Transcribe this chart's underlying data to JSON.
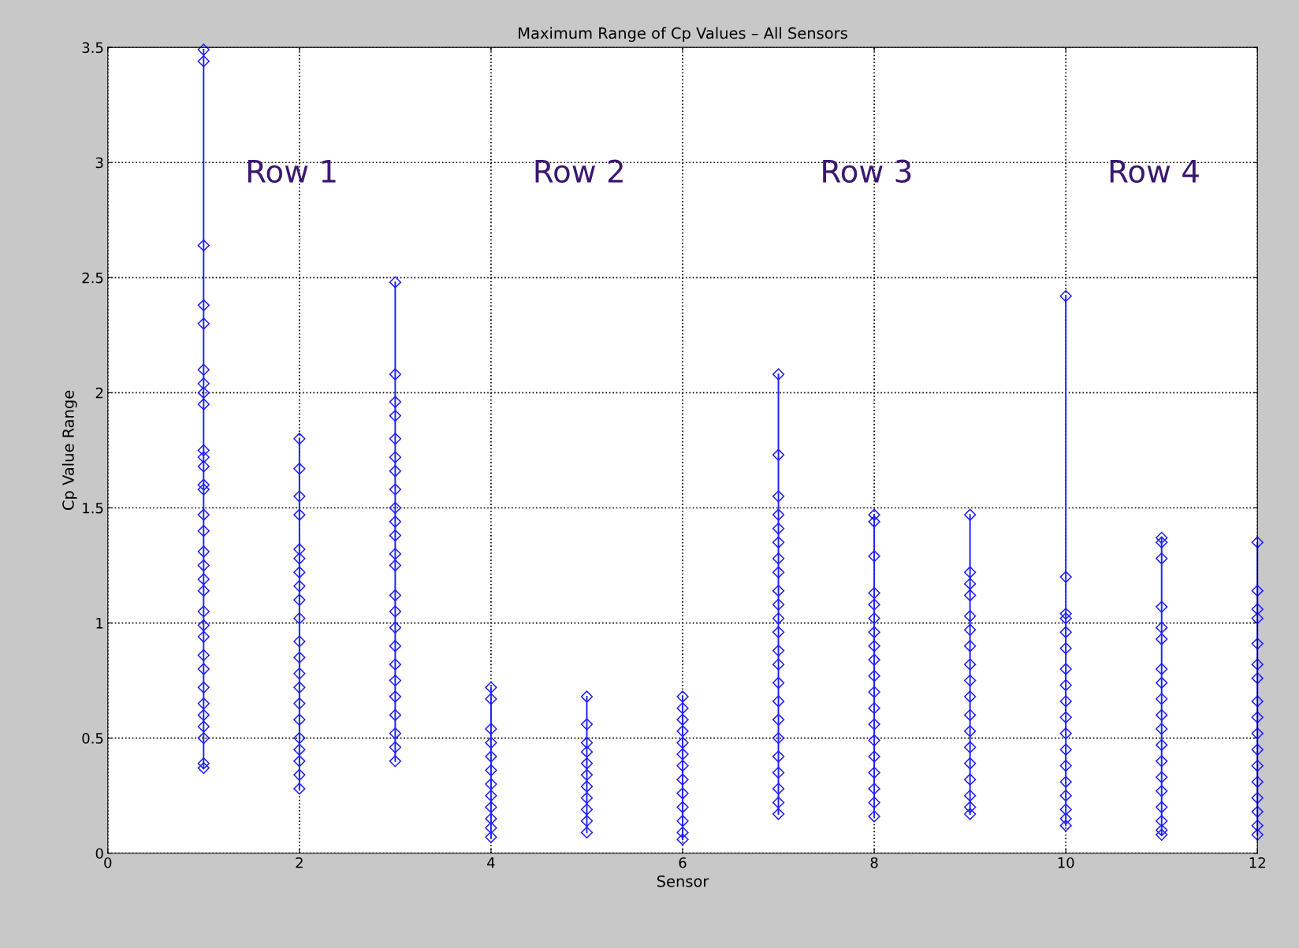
{
  "chart_data": {
    "type": "line",
    "title": "Maximum Range of Cp Values – All Sensors",
    "xlabel": "Sensor",
    "ylabel": "Cp Value Range",
    "xlim": [
      0,
      12
    ],
    "xticks": [
      0,
      2,
      4,
      6,
      8,
      10,
      12
    ],
    "ylim": [
      0,
      3.5
    ],
    "yticks": [
      0,
      0.5,
      1,
      1.5,
      2,
      2.5,
      3,
      3.5
    ],
    "grid": true,
    "marker": "diamond",
    "line_style": "solid",
    "legend": false,
    "annotations": [
      "Row 1",
      "Row 2",
      "Row 3",
      "Row 4"
    ],
    "series": [
      {
        "color": "#1f1fff",
        "x": [
          1,
          1,
          1,
          1,
          1,
          1,
          1,
          1,
          1,
          1,
          1,
          1,
          1,
          1,
          1,
          1,
          1,
          1,
          1,
          1,
          1,
          1,
          1,
          1,
          1,
          1,
          1,
          1,
          1,
          1,
          1,
          1
        ],
        "values": [
          3.49,
          3.44,
          2.64,
          2.38,
          2.3,
          2.1,
          2.04,
          2.0,
          1.95,
          1.75,
          1.72,
          1.68,
          1.6,
          1.58,
          1.47,
          1.4,
          1.31,
          1.25,
          1.19,
          1.14,
          1.05,
          0.99,
          0.94,
          0.86,
          0.8,
          0.72,
          0.65,
          0.6,
          0.55,
          0.5,
          0.39,
          0.37
        ]
      },
      {
        "color": "#1f1fff",
        "x": [
          2,
          2,
          2,
          2,
          2,
          2,
          2,
          2,
          2,
          2,
          2,
          2,
          2,
          2,
          2,
          2,
          2,
          2,
          2,
          2,
          2
        ],
        "values": [
          1.8,
          1.67,
          1.55,
          1.47,
          1.32,
          1.28,
          1.22,
          1.16,
          1.1,
          1.02,
          0.92,
          0.85,
          0.78,
          0.72,
          0.65,
          0.58,
          0.5,
          0.45,
          0.4,
          0.34,
          0.28
        ]
      },
      {
        "color": "#1f1fff",
        "x": [
          3,
          3,
          3,
          3,
          3,
          3,
          3,
          3,
          3,
          3,
          3,
          3,
          3,
          3,
          3,
          3,
          3,
          3,
          3,
          3,
          3,
          3,
          3,
          3
        ],
        "values": [
          2.48,
          2.08,
          1.96,
          1.9,
          1.8,
          1.72,
          1.66,
          1.58,
          1.5,
          1.44,
          1.38,
          1.3,
          1.25,
          1.12,
          1.05,
          0.98,
          0.9,
          0.82,
          0.75,
          0.68,
          0.6,
          0.52,
          0.46,
          0.4
        ]
      },
      {
        "color": "#1f1fff",
        "x": [
          4,
          4,
          4,
          4,
          4,
          4,
          4,
          4,
          4,
          4,
          4,
          4
        ],
        "values": [
          0.72,
          0.67,
          0.54,
          0.48,
          0.42,
          0.36,
          0.3,
          0.25,
          0.2,
          0.15,
          0.11,
          0.07
        ]
      },
      {
        "color": "#1f1fff",
        "x": [
          5,
          5,
          5,
          5,
          5,
          5,
          5,
          5,
          5,
          5,
          5
        ],
        "values": [
          0.68,
          0.56,
          0.48,
          0.44,
          0.39,
          0.34,
          0.29,
          0.24,
          0.19,
          0.14,
          0.09
        ]
      },
      {
        "color": "#1f1fff",
        "x": [
          6,
          6,
          6,
          6,
          6,
          6,
          6,
          6,
          6,
          6,
          6,
          6,
          6
        ],
        "values": [
          0.68,
          0.63,
          0.58,
          0.53,
          0.48,
          0.43,
          0.38,
          0.32,
          0.26,
          0.2,
          0.14,
          0.09,
          0.06
        ]
      },
      {
        "color": "#1f1fff",
        "x": [
          7,
          7,
          7,
          7,
          7,
          7,
          7,
          7,
          7,
          7,
          7,
          7,
          7,
          7,
          7,
          7,
          7,
          7,
          7,
          7,
          7,
          7,
          7
        ],
        "values": [
          2.08,
          1.73,
          1.55,
          1.47,
          1.41,
          1.35,
          1.28,
          1.22,
          1.14,
          1.08,
          1.02,
          0.96,
          0.88,
          0.82,
          0.74,
          0.66,
          0.58,
          0.5,
          0.42,
          0.35,
          0.28,
          0.22,
          0.17
        ]
      },
      {
        "color": "#1f1fff",
        "x": [
          8,
          8,
          8,
          8,
          8,
          8,
          8,
          8,
          8,
          8,
          8,
          8,
          8,
          8,
          8,
          8,
          8,
          8,
          8
        ],
        "values": [
          1.47,
          1.44,
          1.29,
          1.13,
          1.08,
          1.02,
          0.96,
          0.9,
          0.84,
          0.77,
          0.7,
          0.63,
          0.56,
          0.49,
          0.42,
          0.35,
          0.28,
          0.22,
          0.16
        ]
      },
      {
        "color": "#1f1fff",
        "x": [
          9,
          9,
          9,
          9,
          9,
          9,
          9,
          9,
          9,
          9,
          9,
          9,
          9,
          9,
          9,
          9,
          9,
          9
        ],
        "values": [
          1.47,
          1.22,
          1.17,
          1.12,
          1.03,
          0.97,
          0.9,
          0.82,
          0.75,
          0.68,
          0.6,
          0.53,
          0.46,
          0.39,
          0.32,
          0.25,
          0.2,
          0.17
        ]
      },
      {
        "color": "#1f1fff",
        "x": [
          10,
          10,
          10,
          10,
          10,
          10,
          10,
          10,
          10,
          10,
          10,
          10,
          10,
          10,
          10,
          10,
          10,
          10
        ],
        "values": [
          2.42,
          1.2,
          1.04,
          1.02,
          0.96,
          0.89,
          0.8,
          0.73,
          0.66,
          0.59,
          0.52,
          0.45,
          0.38,
          0.31,
          0.25,
          0.19,
          0.15,
          0.12
        ]
      },
      {
        "color": "#1f1fff",
        "x": [
          11,
          11,
          11,
          11,
          11,
          11,
          11,
          11,
          11,
          11,
          11,
          11,
          11,
          11,
          11,
          11,
          11,
          11,
          11
        ],
        "values": [
          1.37,
          1.35,
          1.28,
          1.07,
          0.98,
          0.93,
          0.8,
          0.74,
          0.67,
          0.6,
          0.54,
          0.47,
          0.4,
          0.33,
          0.27,
          0.2,
          0.14,
          0.1,
          0.08
        ]
      },
      {
        "color": "#1f1fff",
        "x": [
          12,
          12,
          12,
          12,
          12,
          12,
          12,
          12,
          12,
          12,
          12,
          12,
          12,
          12,
          12,
          12,
          12
        ],
        "values": [
          1.35,
          1.14,
          1.06,
          1.02,
          0.91,
          0.82,
          0.76,
          0.66,
          0.59,
          0.52,
          0.45,
          0.38,
          0.31,
          0.24,
          0.18,
          0.12,
          0.08
        ]
      }
    ]
  }
}
